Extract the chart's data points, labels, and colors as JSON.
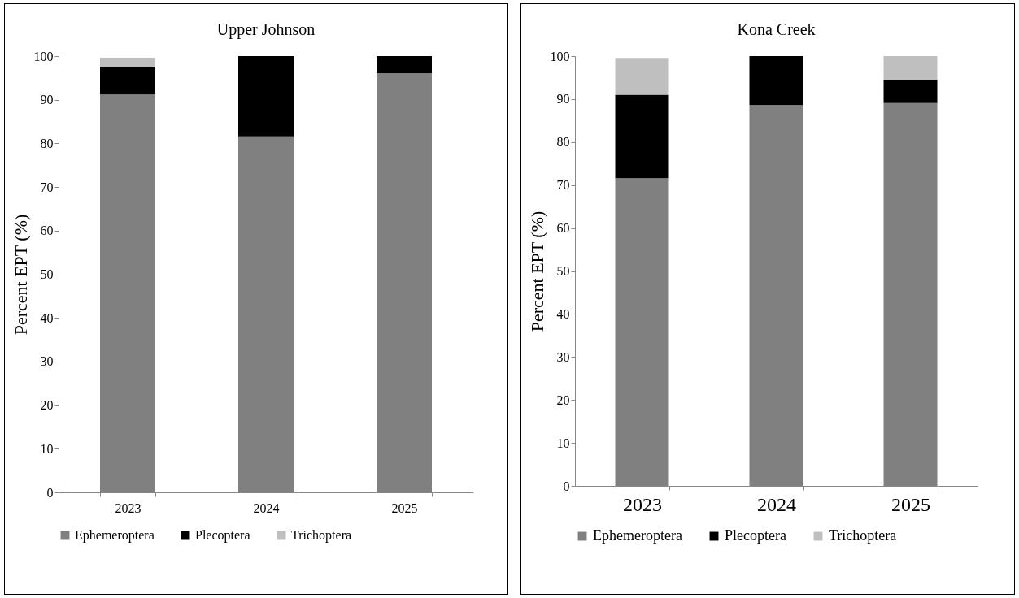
{
  "chart_data": [
    {
      "type": "bar",
      "title": "Upper Johnson",
      "ylabel": "Percent EPT (%)",
      "categories": [
        "2023",
        "2024",
        "2025"
      ],
      "stacked": true,
      "ylim": [
        0,
        100
      ],
      "yticks": [
        0,
        10,
        20,
        30,
        40,
        50,
        60,
        70,
        80,
        90,
        100
      ],
      "grid": false,
      "legend": "bottom",
      "series": [
        {
          "name": "Ephemeroptera",
          "color": "#808080",
          "values": [
            91.2,
            81.6,
            96.1
          ]
        },
        {
          "name": "Plecoptera",
          "color": "#000000",
          "values": [
            6.4,
            18.4,
            3.9
          ]
        },
        {
          "name": "Trichoptera",
          "color": "#bfbfbf",
          "values": [
            2.0,
            0,
            0
          ]
        }
      ]
    },
    {
      "type": "bar",
      "title": "Kona Creek",
      "ylabel": "Percent EPT (%)",
      "categories": [
        "2023",
        "2024",
        "2025"
      ],
      "stacked": true,
      "ylim": [
        0,
        100
      ],
      "yticks": [
        0,
        10,
        20,
        30,
        40,
        50,
        60,
        70,
        80,
        90,
        100
      ],
      "grid": false,
      "legend": "bottom",
      "series": [
        {
          "name": "Ephemeroptera",
          "color": "#808080",
          "values": [
            71.6,
            88.6,
            89.1
          ]
        },
        {
          "name": "Plecoptera",
          "color": "#000000",
          "values": [
            19.4,
            11.4,
            5.4
          ]
        },
        {
          "name": "Trichoptera",
          "color": "#bfbfbf",
          "values": [
            8.4,
            0,
            5.5
          ]
        }
      ]
    }
  ]
}
